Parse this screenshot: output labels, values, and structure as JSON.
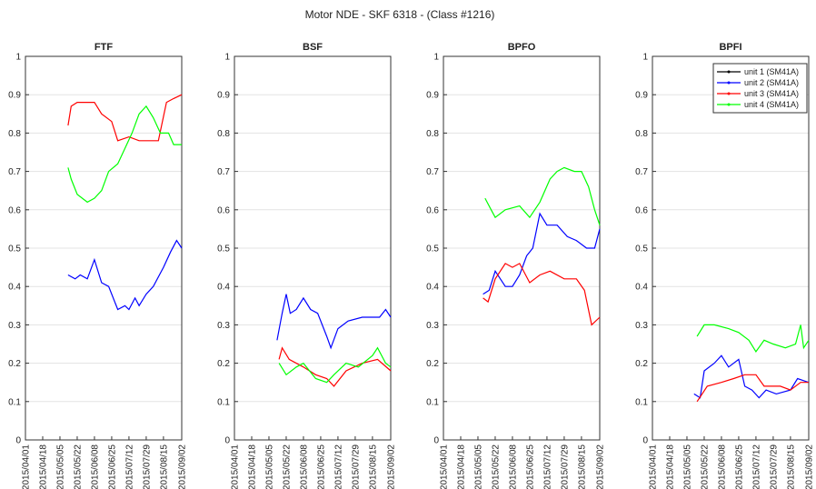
{
  "title": "Motor NDE - SKF 6318 - (Class #1216)",
  "chart_data": [
    {
      "type": "line",
      "title": "FTF",
      "grid": true,
      "xlim": [
        "2015/04/01",
        "2015/09/02"
      ],
      "xticks": [
        "2015/04/01",
        "2015/04/18",
        "2015/05/05",
        "2015/05/22",
        "2015/06/08",
        "2015/06/25",
        "2015/07/12",
        "2015/07/29",
        "2015/08/15",
        "2015/09/02"
      ],
      "ylim": [
        0,
        1
      ],
      "yticks": [
        0,
        0.1,
        0.2,
        0.3,
        0.4,
        0.5,
        0.6,
        0.7,
        0.8,
        0.9,
        1
      ],
      "series": [
        {
          "color": "#0000ff",
          "x": [
            "2015/05/13",
            "2015/05/20",
            "2015/05/25",
            "2015/06/01",
            "2015/06/08",
            "2015/06/15",
            "2015/06/22",
            "2015/07/01",
            "2015/07/08",
            "2015/07/12",
            "2015/07/18",
            "2015/07/22",
            "2015/07/29",
            "2015/08/05",
            "2015/08/15",
            "2015/08/22",
            "2015/08/28",
            "2015/09/02"
          ],
          "values": [
            0.43,
            0.42,
            0.43,
            0.42,
            0.47,
            0.41,
            0.4,
            0.34,
            0.35,
            0.34,
            0.37,
            0.35,
            0.38,
            0.4,
            0.45,
            0.49,
            0.52,
            0.5
          ]
        },
        {
          "color": "#ff0000",
          "x": [
            "2015/05/13",
            "2015/05/16",
            "2015/05/22",
            "2015/06/08",
            "2015/06/15",
            "2015/06/25",
            "2015/07/01",
            "2015/07/12",
            "2015/07/22",
            "2015/07/29",
            "2015/08/10",
            "2015/08/18",
            "2015/08/25",
            "2015/09/02"
          ],
          "values": [
            0.82,
            0.87,
            0.88,
            0.88,
            0.85,
            0.83,
            0.78,
            0.79,
            0.78,
            0.78,
            0.78,
            0.88,
            0.89,
            0.9
          ]
        },
        {
          "color": "#00ff00",
          "x": [
            "2015/05/13",
            "2015/05/16",
            "2015/05/22",
            "2015/06/01",
            "2015/06/08",
            "2015/06/15",
            "2015/06/22",
            "2015/07/01",
            "2015/07/08",
            "2015/07/15",
            "2015/07/22",
            "2015/07/29",
            "2015/08/05",
            "2015/08/12",
            "2015/08/20",
            "2015/08/25",
            "2015/09/02"
          ],
          "values": [
            0.71,
            0.68,
            0.64,
            0.62,
            0.63,
            0.65,
            0.7,
            0.72,
            0.76,
            0.8,
            0.85,
            0.87,
            0.84,
            0.8,
            0.8,
            0.77,
            0.77
          ]
        }
      ]
    },
    {
      "type": "line",
      "title": "BSF",
      "grid": true,
      "xlim": [
        "2015/04/01",
        "2015/09/02"
      ],
      "xticks": [
        "2015/04/01",
        "2015/04/18",
        "2015/05/05",
        "2015/05/22",
        "2015/06/08",
        "2015/06/25",
        "2015/07/12",
        "2015/07/29",
        "2015/08/15",
        "2015/09/02"
      ],
      "ylim": [
        0,
        1
      ],
      "yticks": [
        0,
        0.1,
        0.2,
        0.3,
        0.4,
        0.5,
        0.6,
        0.7,
        0.8,
        0.9,
        1
      ],
      "series": [
        {
          "color": "#0000ff",
          "x": [
            "2015/05/13",
            "2015/05/18",
            "2015/05/22",
            "2015/05/26",
            "2015/06/01",
            "2015/06/08",
            "2015/06/15",
            "2015/06/22",
            "2015/07/01",
            "2015/07/05",
            "2015/07/12",
            "2015/07/22",
            "2015/08/05",
            "2015/08/22",
            "2015/08/28",
            "2015/09/02"
          ],
          "values": [
            0.26,
            0.33,
            0.38,
            0.33,
            0.34,
            0.37,
            0.34,
            0.33,
            0.27,
            0.24,
            0.29,
            0.31,
            0.32,
            0.32,
            0.34,
            0.32
          ]
        },
        {
          "color": "#ff0000",
          "x": [
            "2015/05/15",
            "2015/05/18",
            "2015/05/25",
            "2015/06/08",
            "2015/06/20",
            "2015/07/01",
            "2015/07/08",
            "2015/07/20",
            "2015/08/05",
            "2015/08/20",
            "2015/09/02"
          ],
          "values": [
            0.21,
            0.24,
            0.21,
            0.19,
            0.17,
            0.16,
            0.14,
            0.18,
            0.2,
            0.21,
            0.18
          ]
        },
        {
          "color": "#00ff00",
          "x": [
            "2015/05/15",
            "2015/05/22",
            "2015/06/01",
            "2015/06/08",
            "2015/06/20",
            "2015/07/01",
            "2015/07/08",
            "2015/07/20",
            "2015/08/01",
            "2015/08/15",
            "2015/08/20",
            "2015/08/28",
            "2015/09/02"
          ],
          "values": [
            0.2,
            0.17,
            0.19,
            0.2,
            0.16,
            0.15,
            0.17,
            0.2,
            0.19,
            0.22,
            0.24,
            0.2,
            0.19
          ]
        }
      ]
    },
    {
      "type": "line",
      "title": "BPFO",
      "grid": true,
      "xlim": [
        "2015/04/01",
        "2015/09/02"
      ],
      "xticks": [
        "2015/04/01",
        "2015/04/18",
        "2015/05/05",
        "2015/05/22",
        "2015/06/08",
        "2015/06/25",
        "2015/07/12",
        "2015/07/29",
        "2015/08/15",
        "2015/09/02"
      ],
      "ylim": [
        0,
        1
      ],
      "yticks": [
        0,
        0.1,
        0.2,
        0.3,
        0.4,
        0.5,
        0.6,
        0.7,
        0.8,
        0.9,
        1
      ],
      "series": [
        {
          "color": "#0000ff",
          "x": [
            "2015/05/10",
            "2015/05/16",
            "2015/05/22",
            "2015/06/01",
            "2015/06/08",
            "2015/06/15",
            "2015/06/22",
            "2015/06/28",
            "2015/07/05",
            "2015/07/12",
            "2015/07/22",
            "2015/08/01",
            "2015/08/10",
            "2015/08/20",
            "2015/08/28",
            "2015/09/02"
          ],
          "values": [
            0.38,
            0.39,
            0.44,
            0.4,
            0.4,
            0.43,
            0.48,
            0.5,
            0.59,
            0.56,
            0.56,
            0.53,
            0.52,
            0.5,
            0.5,
            0.55
          ]
        },
        {
          "color": "#ff0000",
          "x": [
            "2015/05/10",
            "2015/05/15",
            "2015/05/22",
            "2015/06/01",
            "2015/06/08",
            "2015/06/15",
            "2015/06/25",
            "2015/07/05",
            "2015/07/15",
            "2015/07/29",
            "2015/08/10",
            "2015/08/18",
            "2015/08/25",
            "2015/09/02"
          ],
          "values": [
            0.37,
            0.36,
            0.42,
            0.46,
            0.45,
            0.46,
            0.41,
            0.43,
            0.44,
            0.42,
            0.42,
            0.39,
            0.3,
            0.32
          ]
        },
        {
          "color": "#00ff00",
          "x": [
            "2015/05/12",
            "2015/05/18",
            "2015/05/22",
            "2015/06/01",
            "2015/06/15",
            "2015/06/25",
            "2015/07/05",
            "2015/07/15",
            "2015/07/22",
            "2015/07/29",
            "2015/08/08",
            "2015/08/15",
            "2015/08/22",
            "2015/08/28",
            "2015/09/02"
          ],
          "values": [
            0.63,
            0.6,
            0.58,
            0.6,
            0.61,
            0.58,
            0.62,
            0.68,
            0.7,
            0.71,
            0.7,
            0.7,
            0.66,
            0.6,
            0.56
          ]
        }
      ]
    },
    {
      "type": "line",
      "title": "BPFI",
      "grid": true,
      "legend": "upper right",
      "xlim": [
        "2015/04/01",
        "2015/09/02"
      ],
      "xticks": [
        "2015/04/01",
        "2015/04/18",
        "2015/05/05",
        "2015/05/22",
        "2015/06/08",
        "2015/06/25",
        "2015/07/12",
        "2015/07/29",
        "2015/08/15",
        "2015/09/02"
      ],
      "ylim": [
        0,
        1
      ],
      "yticks": [
        0,
        0.1,
        0.2,
        0.3,
        0.4,
        0.5,
        0.6,
        0.7,
        0.8,
        0.9,
        1
      ],
      "series": [
        {
          "name": "unit 1 (SM41A)",
          "color": "#000000",
          "x": [],
          "values": []
        },
        {
          "name": "unit 2 (SM41A)",
          "color": "#0000ff",
          "x": [
            "2015/05/12",
            "2015/05/18",
            "2015/05/22",
            "2015/06/01",
            "2015/06/08",
            "2015/06/15",
            "2015/06/25",
            "2015/07/01",
            "2015/07/08",
            "2015/07/15",
            "2015/07/22",
            "2015/08/01",
            "2015/08/15",
            "2015/08/22",
            "2015/09/02"
          ],
          "values": [
            0.12,
            0.11,
            0.18,
            0.2,
            0.22,
            0.19,
            0.21,
            0.14,
            0.13,
            0.11,
            0.13,
            0.12,
            0.13,
            0.16,
            0.15
          ]
        },
        {
          "name": "unit 3 (SM41A)",
          "color": "#ff0000",
          "x": [
            "2015/05/15",
            "2015/05/20",
            "2015/05/25",
            "2015/06/08",
            "2015/06/20",
            "2015/07/01",
            "2015/07/12",
            "2015/07/20",
            "2015/08/05",
            "2015/08/15",
            "2015/08/25",
            "2015/09/02"
          ],
          "values": [
            0.1,
            0.12,
            0.14,
            0.15,
            0.16,
            0.17,
            0.17,
            0.14,
            0.14,
            0.13,
            0.15,
            0.15
          ]
        },
        {
          "name": "unit 4 (SM41A)",
          "color": "#00ff00",
          "x": [
            "2015/05/15",
            "2015/05/22",
            "2015/06/01",
            "2015/06/15",
            "2015/06/25",
            "2015/07/05",
            "2015/07/12",
            "2015/07/20",
            "2015/07/29",
            "2015/08/10",
            "2015/08/20",
            "2015/08/25",
            "2015/08/28",
            "2015/09/02"
          ],
          "values": [
            0.27,
            0.3,
            0.3,
            0.29,
            0.28,
            0.26,
            0.23,
            0.26,
            0.25,
            0.24,
            0.25,
            0.3,
            0.24,
            0.26
          ]
        }
      ]
    }
  ]
}
